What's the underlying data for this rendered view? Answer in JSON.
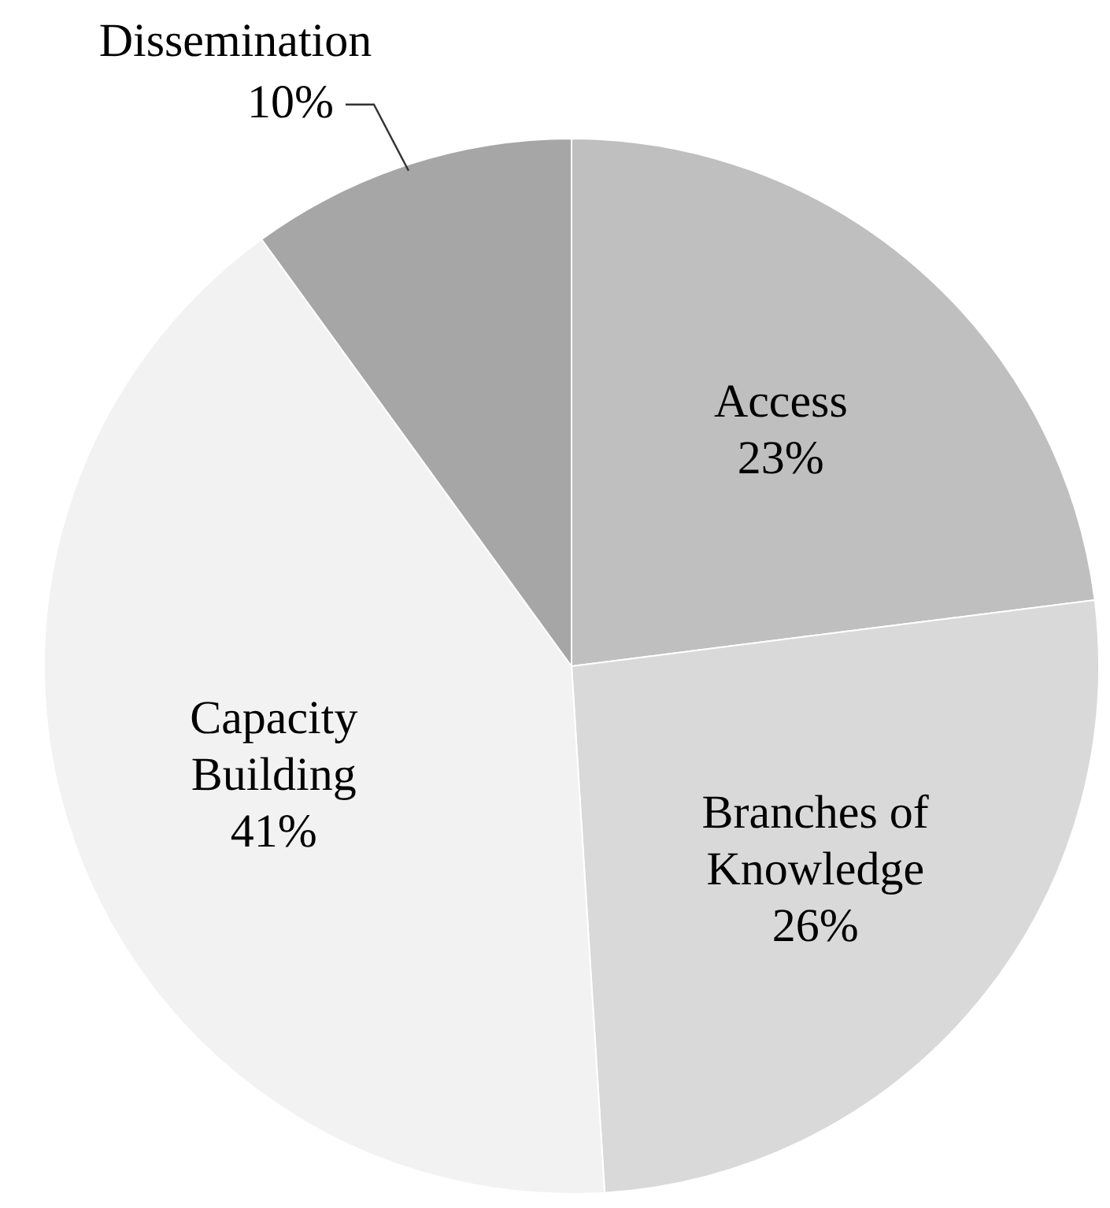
{
  "chart_data": {
    "type": "pie",
    "categories": [
      "Access",
      "Branches of Knowledge",
      "Capacity Building",
      "Dissemination"
    ],
    "values": [
      23,
      26,
      41,
      10
    ],
    "colors": [
      "#bfbfbf",
      "#d9d9d9",
      "#f2f2f2",
      "#a6a6a6"
    ],
    "value_labels": [
      "23%",
      "26%",
      "41%",
      "10%"
    ]
  }
}
